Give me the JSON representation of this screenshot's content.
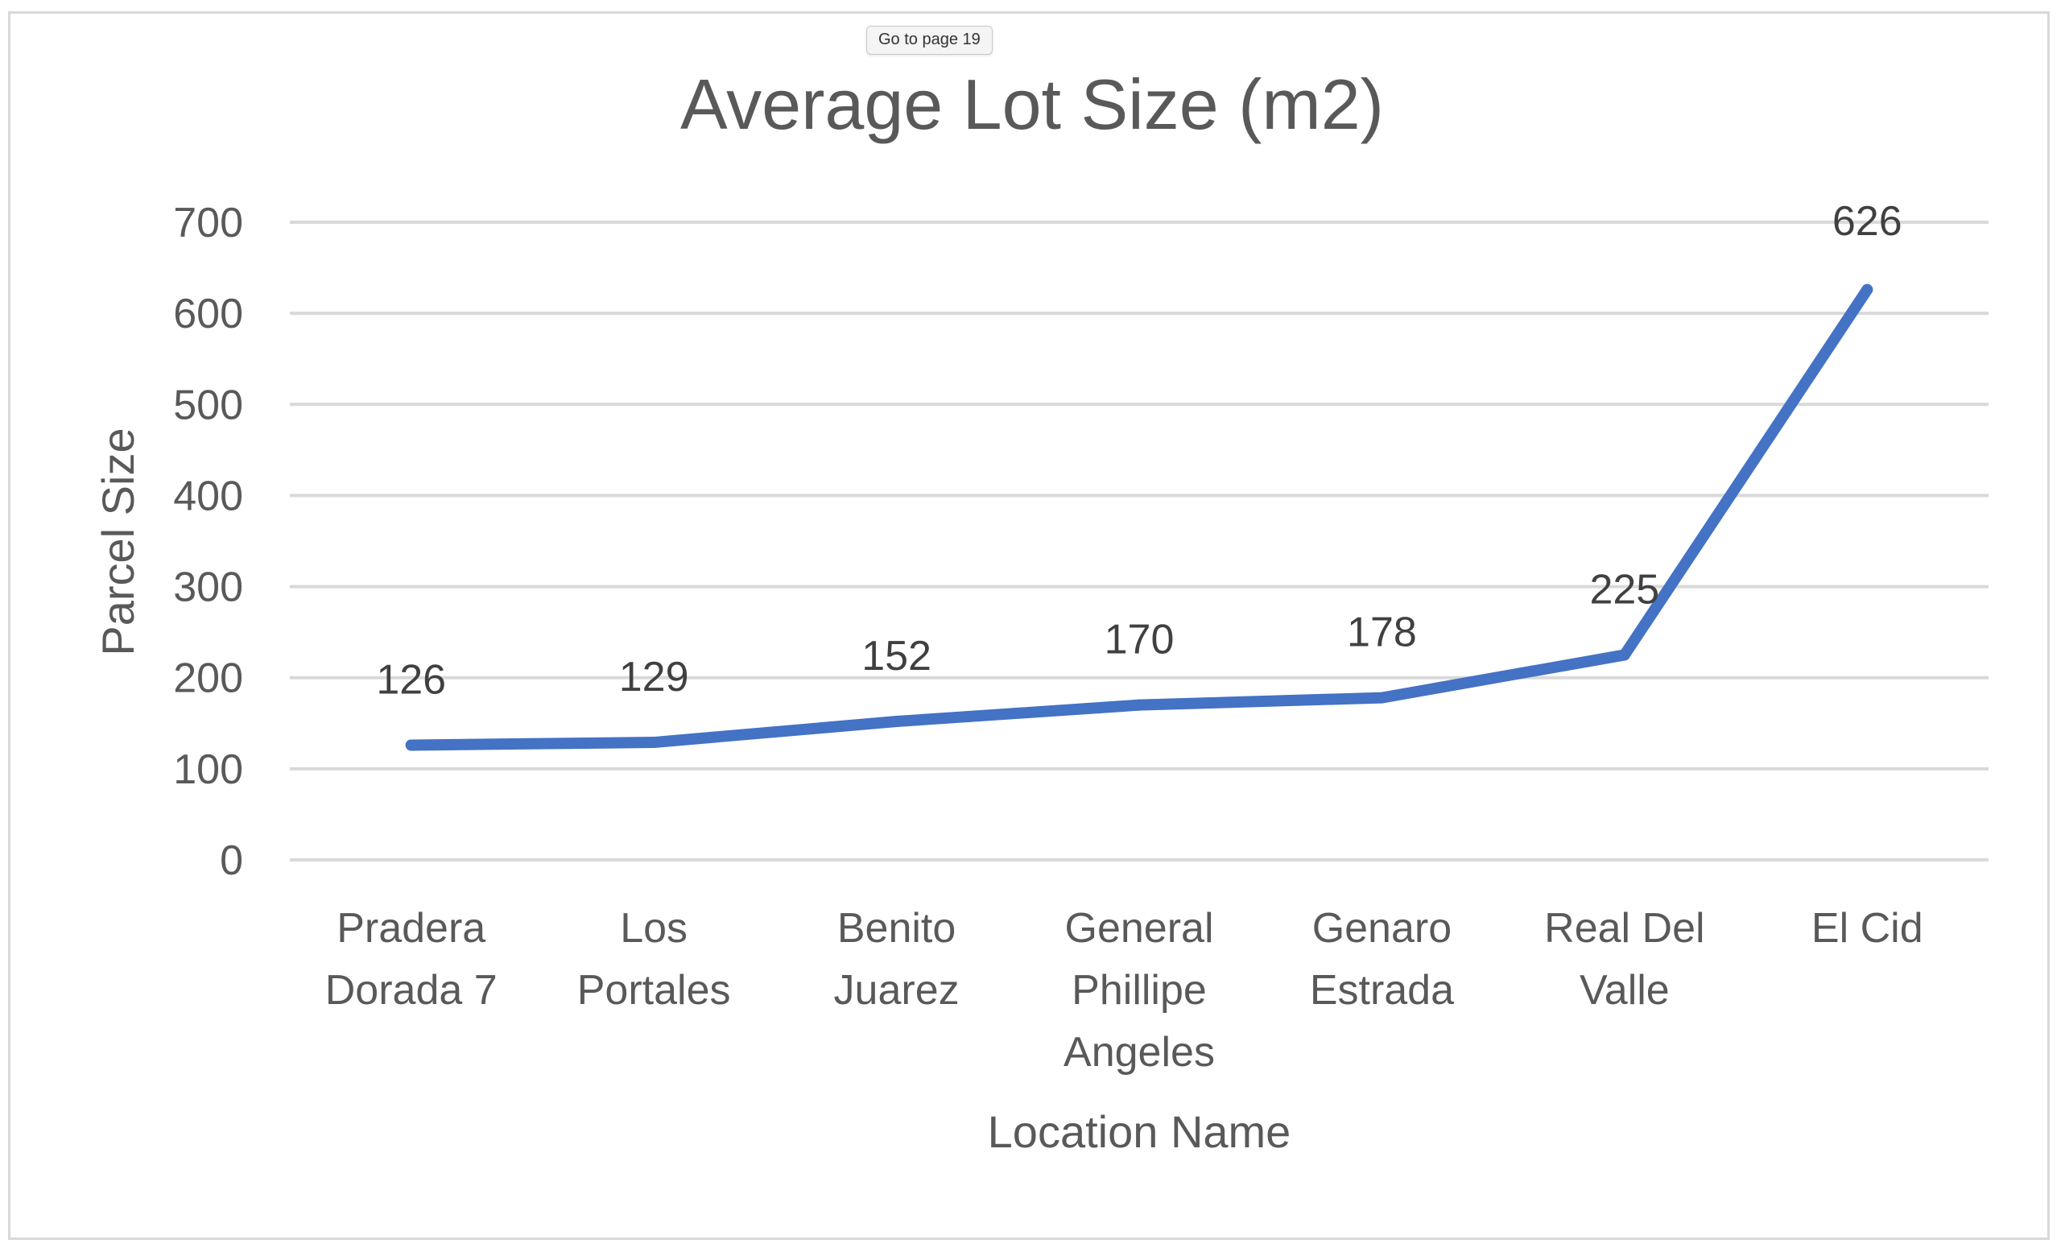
{
  "tooltip": {
    "text": "Go to page 19"
  },
  "chart_data": {
    "type": "line",
    "title": "Average Lot Size (m2)",
    "xlabel": "Location Name",
    "ylabel": "Parcel Size",
    "ylim": [
      0,
      700
    ],
    "yticks": [
      0,
      100,
      200,
      300,
      400,
      500,
      600,
      700
    ],
    "grid": true,
    "legend": "none",
    "categories": [
      [
        "Pradera",
        "Dorada 7"
      ],
      [
        "Los",
        "Portales"
      ],
      [
        "Benito",
        "Juarez"
      ],
      [
        "General",
        "Phillipe",
        "Angeles"
      ],
      [
        "Genaro",
        "Estrada"
      ],
      [
        "Real Del",
        "Valle"
      ],
      [
        "El Cid"
      ]
    ],
    "series": [
      {
        "values": [
          126,
          129,
          152,
          170,
          178,
          225,
          626
        ],
        "color": "#4472c4"
      }
    ],
    "data_labels": [
      "126",
      "129",
      "152",
      "170",
      "178",
      "225",
      "626"
    ]
  }
}
